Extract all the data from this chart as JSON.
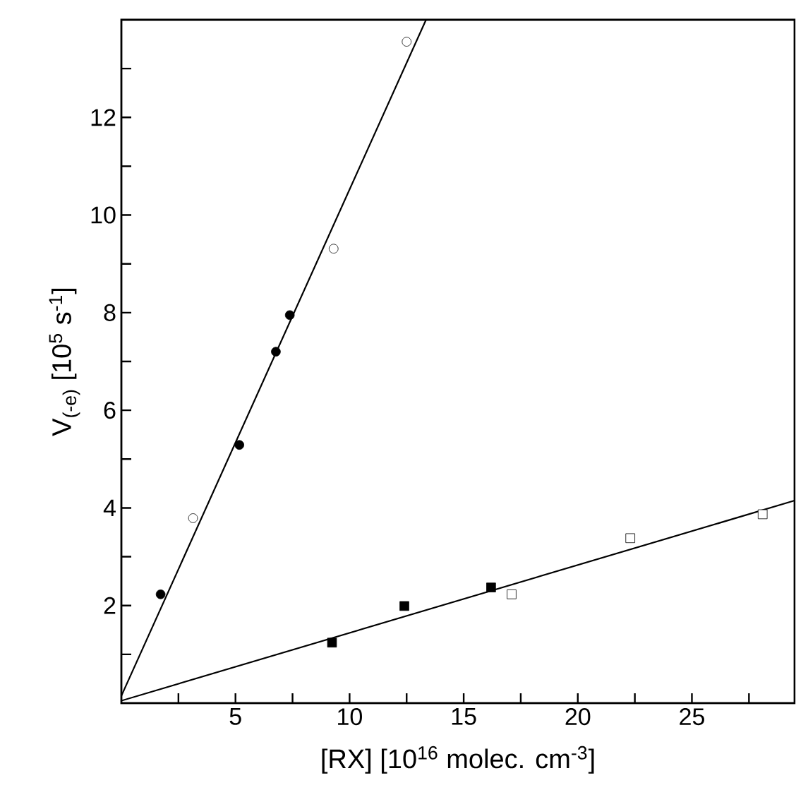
{
  "chart_data": {
    "type": "scatter",
    "xlabel": "[RX] [10$^{16}$ molec. cm$^{-3}$]",
    "ylabel": "V$_{(-e)}$ [10$^{5}$ s$^{-1}$]",
    "xlim": [
      0,
      29.5
    ],
    "ylim": [
      0,
      14
    ],
    "xticks": [
      {
        "value": 2.5,
        "label": null
      },
      5,
      {
        "value": 7.5,
        "label": null
      },
      10,
      {
        "value": 12.5,
        "label": null
      },
      15,
      {
        "value": 17.5,
        "label": null
      },
      20,
      {
        "value": 22.5,
        "label": null
      },
      25,
      {
        "value": 27.5,
        "label": null
      }
    ],
    "yticks": [
      {
        "value": 1,
        "label": null
      },
      2,
      {
        "value": 3,
        "label": null
      },
      4,
      {
        "value": 5,
        "label": null
      },
      6,
      {
        "value": 7,
        "label": null
      },
      8,
      {
        "value": 9,
        "label": null
      },
      10,
      {
        "value": 11,
        "label": null
      },
      12,
      {
        "value": 13,
        "label": null
      }
    ],
    "grid": false,
    "series": [
      {
        "marker": "circle",
        "color": "#000000",
        "x": [
          1.72,
          5.17,
          6.77,
          7.38
        ],
        "values": [
          2.23,
          5.29,
          7.2,
          7.95
        ]
      },
      {
        "marker": "circle",
        "color": "#ffffff",
        "x": [
          3.14,
          9.3,
          12.5
        ],
        "values": [
          3.79,
          9.31,
          13.55
        ]
      },
      {
        "marker": "square",
        "color": "#000000",
        "x": [
          9.23,
          12.4,
          16.2
        ],
        "values": [
          1.24,
          1.99,
          2.37
        ]
      },
      {
        "marker": "square",
        "color": "#ffffff",
        "x": [
          17.1,
          22.3,
          28.1
        ],
        "values": [
          2.23,
          3.38,
          3.87
        ]
      },
      {
        "type": "line",
        "marker": "none",
        "line_style": "solid",
        "color": "#000000",
        "x": [
          0,
          13.35
        ],
        "values": [
          0.15,
          14
        ]
      },
      {
        "type": "line",
        "marker": "none",
        "line_style": "solid",
        "color": "#000000",
        "x": [
          0,
          29.5
        ],
        "values": [
          0.05,
          4.15
        ]
      }
    ]
  }
}
